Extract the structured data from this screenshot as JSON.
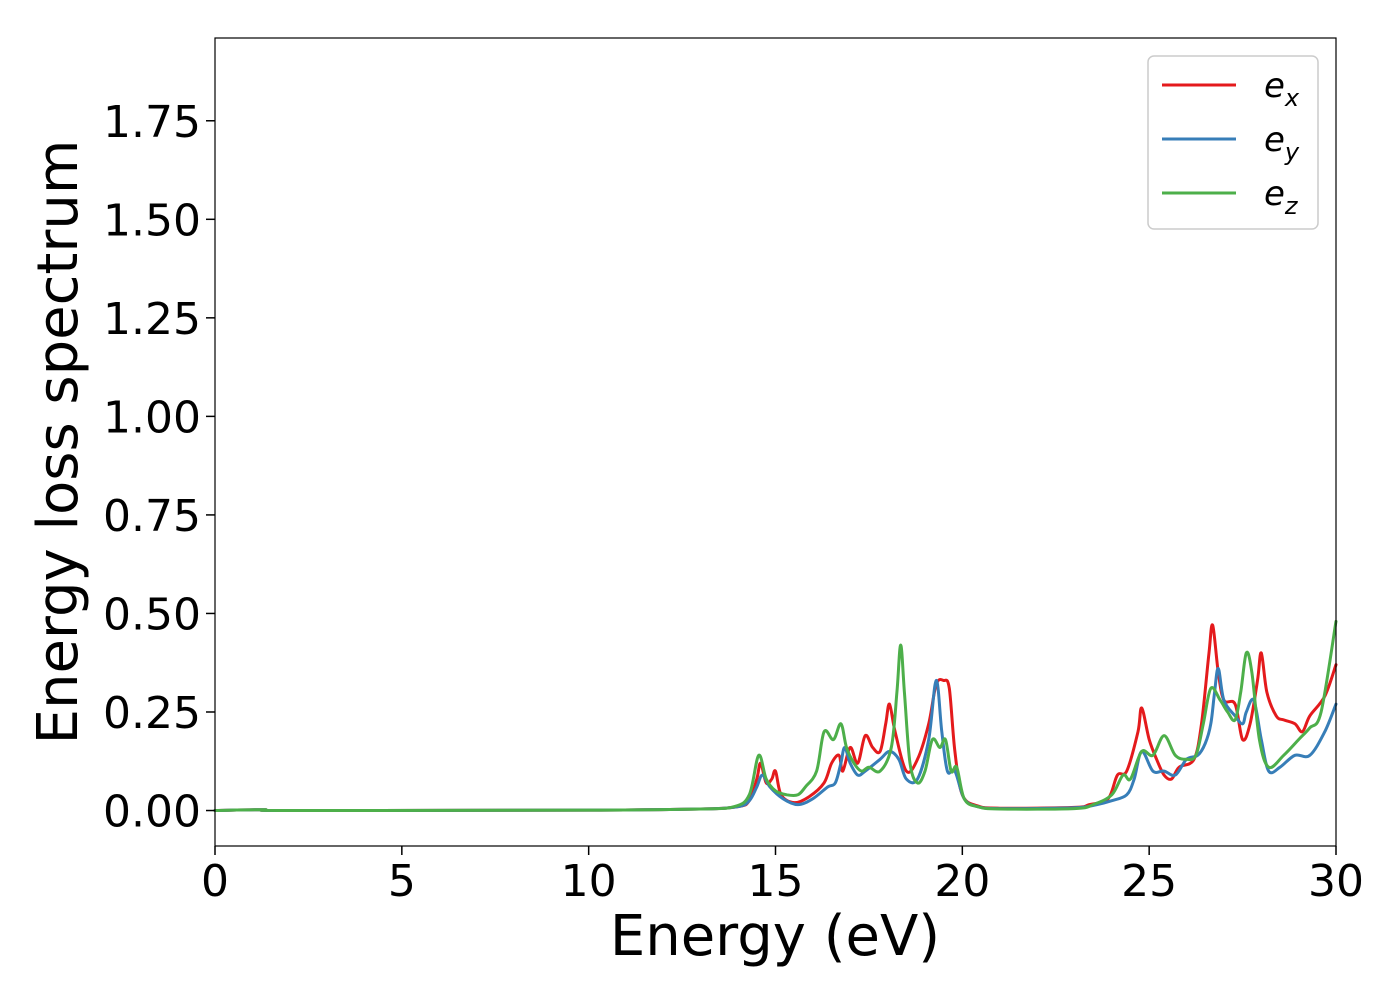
{
  "chart_data": {
    "type": "line",
    "title": "",
    "xlabel": "Energy (eV)",
    "ylabel": "Energy loss spectrum",
    "xlim": [
      0,
      30
    ],
    "ylim": [
      -0.09,
      1.96
    ],
    "xticks": [
      0,
      5,
      10,
      15,
      20,
      25,
      30
    ],
    "xtick_labels": [
      "0",
      "5",
      "10",
      "15",
      "20",
      "25",
      "30"
    ],
    "yticks": [
      0,
      0.25,
      0.5,
      0.75,
      1.0,
      1.25,
      1.5,
      1.75
    ],
    "ytick_labels": [
      "0.00",
      "0.25",
      "0.50",
      "0.75",
      "1.00",
      "1.25",
      "1.50",
      "1.75"
    ],
    "grid": false,
    "legend_position": "top-right",
    "series": [
      {
        "name": "e",
        "subscript": "x",
        "color": "#e41a1c",
        "points": [
          [
            0,
            0.0
          ],
          [
            1.3,
            0.002
          ],
          [
            2,
            0.0
          ],
          [
            10,
            0.001
          ],
          [
            13,
            0.004
          ],
          [
            14,
            0.01
          ],
          [
            14.3,
            0.025
          ],
          [
            14.5,
            0.08
          ],
          [
            14.6,
            0.12
          ],
          [
            14.75,
            0.07
          ],
          [
            14.9,
            0.08
          ],
          [
            15,
            0.1
          ],
          [
            15.15,
            0.04
          ],
          [
            15.5,
            0.02
          ],
          [
            15.9,
            0.035
          ],
          [
            16.3,
            0.07
          ],
          [
            16.5,
            0.12
          ],
          [
            16.7,
            0.14
          ],
          [
            16.8,
            0.1
          ],
          [
            17,
            0.16
          ],
          [
            17.2,
            0.12
          ],
          [
            17.4,
            0.19
          ],
          [
            17.6,
            0.16
          ],
          [
            17.8,
            0.15
          ],
          [
            17.95,
            0.22
          ],
          [
            18.05,
            0.27
          ],
          [
            18.2,
            0.2
          ],
          [
            18.5,
            0.1
          ],
          [
            18.8,
            0.13
          ],
          [
            19.1,
            0.22
          ],
          [
            19.3,
            0.32
          ],
          [
            19.5,
            0.33
          ],
          [
            19.65,
            0.31
          ],
          [
            19.8,
            0.15
          ],
          [
            20,
            0.04
          ],
          [
            20.4,
            0.012
          ],
          [
            21,
            0.006
          ],
          [
            23,
            0.008
          ],
          [
            23.4,
            0.015
          ],
          [
            23.9,
            0.03
          ],
          [
            24.15,
            0.09
          ],
          [
            24.4,
            0.1
          ],
          [
            24.7,
            0.2
          ],
          [
            24.8,
            0.26
          ],
          [
            25,
            0.18
          ],
          [
            25.2,
            0.13
          ],
          [
            25.4,
            0.09
          ],
          [
            25.6,
            0.08
          ],
          [
            25.8,
            0.11
          ],
          [
            26.2,
            0.13
          ],
          [
            26.4,
            0.22
          ],
          [
            26.6,
            0.4
          ],
          [
            26.7,
            0.47
          ],
          [
            26.85,
            0.35
          ],
          [
            27,
            0.28
          ],
          [
            27.3,
            0.27
          ],
          [
            27.5,
            0.18
          ],
          [
            27.7,
            0.22
          ],
          [
            27.9,
            0.33
          ],
          [
            28,
            0.4
          ],
          [
            28.15,
            0.3
          ],
          [
            28.4,
            0.24
          ],
          [
            28.6,
            0.23
          ],
          [
            28.9,
            0.22
          ],
          [
            29.1,
            0.2
          ],
          [
            29.3,
            0.24
          ],
          [
            29.7,
            0.29
          ],
          [
            30,
            0.37
          ]
        ]
      },
      {
        "name": "e",
        "subscript": "y",
        "color": "#377eb8",
        "points": [
          [
            0,
            0.0
          ],
          [
            1.3,
            0.002
          ],
          [
            2,
            0.0
          ],
          [
            10,
            0.001
          ],
          [
            13,
            0.004
          ],
          [
            14,
            0.01
          ],
          [
            14.3,
            0.025
          ],
          [
            14.5,
            0.06
          ],
          [
            14.65,
            0.09
          ],
          [
            14.85,
            0.06
          ],
          [
            15.2,
            0.03
          ],
          [
            15.6,
            0.015
          ],
          [
            16,
            0.03
          ],
          [
            16.4,
            0.06
          ],
          [
            16.6,
            0.07
          ],
          [
            16.75,
            0.12
          ],
          [
            16.85,
            0.16
          ],
          [
            17,
            0.12
          ],
          [
            17.2,
            0.09
          ],
          [
            17.4,
            0.1
          ],
          [
            17.8,
            0.13
          ],
          [
            18.05,
            0.15
          ],
          [
            18.3,
            0.13
          ],
          [
            18.5,
            0.08
          ],
          [
            18.8,
            0.08
          ],
          [
            19.1,
            0.18
          ],
          [
            19.3,
            0.33
          ],
          [
            19.45,
            0.2
          ],
          [
            19.6,
            0.1
          ],
          [
            19.8,
            0.1
          ],
          [
            20.05,
            0.03
          ],
          [
            20.4,
            0.01
          ],
          [
            21,
            0.005
          ],
          [
            23,
            0.007
          ],
          [
            23.6,
            0.015
          ],
          [
            24,
            0.025
          ],
          [
            24.4,
            0.04
          ],
          [
            24.6,
            0.08
          ],
          [
            24.8,
            0.15
          ],
          [
            25.1,
            0.1
          ],
          [
            25.4,
            0.1
          ],
          [
            25.7,
            0.09
          ],
          [
            26,
            0.13
          ],
          [
            26.3,
            0.14
          ],
          [
            26.5,
            0.17
          ],
          [
            26.65,
            0.22
          ],
          [
            26.75,
            0.3
          ],
          [
            26.85,
            0.36
          ],
          [
            27,
            0.28
          ],
          [
            27.3,
            0.24
          ],
          [
            27.5,
            0.22
          ],
          [
            27.6,
            0.25
          ],
          [
            27.8,
            0.28
          ],
          [
            28,
            0.18
          ],
          [
            28.2,
            0.1
          ],
          [
            28.5,
            0.11
          ],
          [
            28.9,
            0.14
          ],
          [
            29.3,
            0.14
          ],
          [
            29.7,
            0.2
          ],
          [
            30,
            0.27
          ]
        ]
      },
      {
        "name": "e",
        "subscript": "z",
        "color": "#4daf4a",
        "points": [
          [
            0,
            0.0
          ],
          [
            1.3,
            0.002
          ],
          [
            2,
            0.0
          ],
          [
            10,
            0.001
          ],
          [
            13,
            0.004
          ],
          [
            13.9,
            0.01
          ],
          [
            14.3,
            0.04
          ],
          [
            14.55,
            0.14
          ],
          [
            14.75,
            0.08
          ],
          [
            15,
            0.05
          ],
          [
            15.3,
            0.04
          ],
          [
            15.6,
            0.04
          ],
          [
            15.8,
            0.06
          ],
          [
            16.1,
            0.1
          ],
          [
            16.3,
            0.2
          ],
          [
            16.55,
            0.18
          ],
          [
            16.75,
            0.22
          ],
          [
            16.9,
            0.16
          ],
          [
            17.1,
            0.12
          ],
          [
            17.3,
            0.1
          ],
          [
            17.5,
            0.11
          ],
          [
            17.8,
            0.1
          ],
          [
            18.1,
            0.16
          ],
          [
            18.25,
            0.3
          ],
          [
            18.35,
            0.42
          ],
          [
            18.45,
            0.3
          ],
          [
            18.6,
            0.12
          ],
          [
            18.8,
            0.07
          ],
          [
            19,
            0.1
          ],
          [
            19.2,
            0.18
          ],
          [
            19.4,
            0.16
          ],
          [
            19.55,
            0.18
          ],
          [
            19.7,
            0.1
          ],
          [
            19.85,
            0.11
          ],
          [
            20.05,
            0.03
          ],
          [
            20.4,
            0.01
          ],
          [
            21,
            0.004
          ],
          [
            23,
            0.005
          ],
          [
            23.5,
            0.015
          ],
          [
            24,
            0.04
          ],
          [
            24.3,
            0.09
          ],
          [
            24.5,
            0.08
          ],
          [
            24.8,
            0.15
          ],
          [
            25.1,
            0.14
          ],
          [
            25.4,
            0.19
          ],
          [
            25.7,
            0.14
          ],
          [
            26,
            0.13
          ],
          [
            26.25,
            0.14
          ],
          [
            26.45,
            0.22
          ],
          [
            26.65,
            0.31
          ],
          [
            26.9,
            0.28
          ],
          [
            27.1,
            0.25
          ],
          [
            27.3,
            0.23
          ],
          [
            27.45,
            0.3
          ],
          [
            27.6,
            0.4
          ],
          [
            27.75,
            0.35
          ],
          [
            27.95,
            0.18
          ],
          [
            28.2,
            0.11
          ],
          [
            28.6,
            0.14
          ],
          [
            29,
            0.18
          ],
          [
            29.3,
            0.21
          ],
          [
            29.6,
            0.25
          ],
          [
            30,
            0.48
          ]
        ]
      }
    ]
  }
}
